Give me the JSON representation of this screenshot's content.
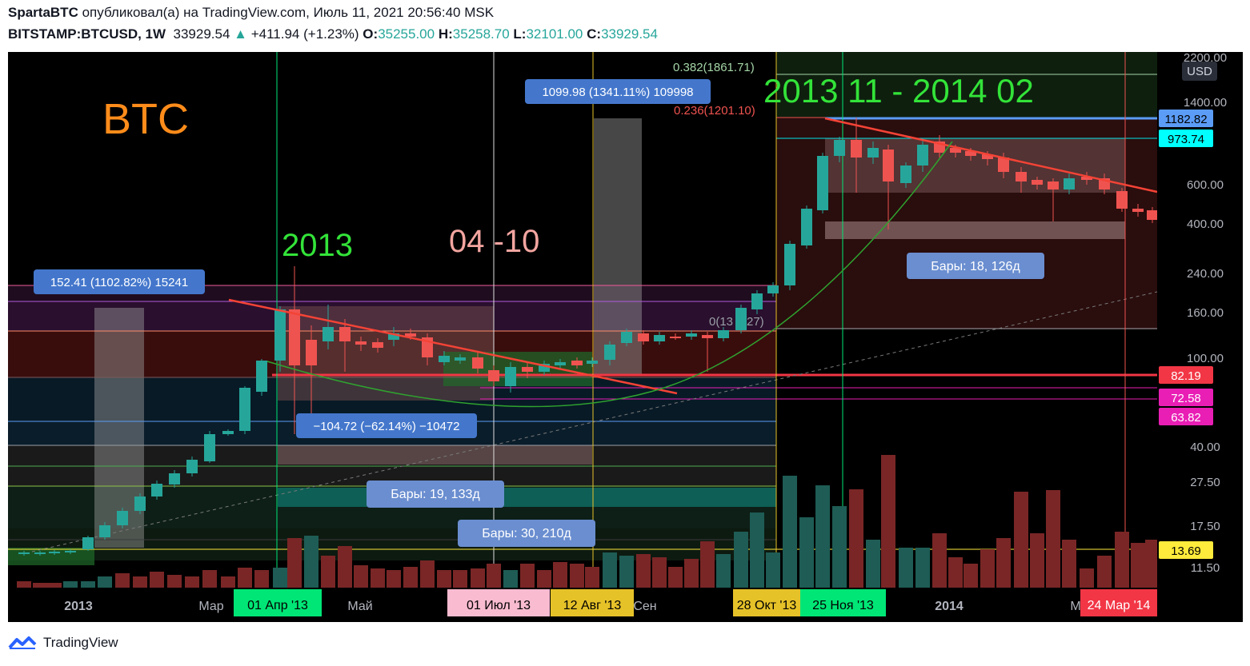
{
  "header": {
    "author": "SpartaBTC",
    "published_text": "опубликовал(а) на TradingView.com, Июль 11, 2021 20:56:40 MSK",
    "symbol": "BITSTAMP:BTCUSD, 1W",
    "price": "33929.54",
    "change": "+411.94 (+1.23%)",
    "o_label": "O:",
    "o_value": "35255.00",
    "h_label": "H:",
    "h_value": "35258.70",
    "l_label": "L:",
    "l_value": "32101.00",
    "c_label": "C:",
    "c_value": "33929.54"
  },
  "chart": {
    "currency_button": "USD",
    "y_ticks": [
      "2200.00",
      "1400.00",
      "600.00",
      "400.00",
      "240.00",
      "160.00",
      "100.00",
      "40.00",
      "27.50",
      "17.50",
      "11.50"
    ],
    "x_labels": [
      "2013",
      "Мар",
      "Май",
      "Сен",
      "2014",
      "Мар"
    ],
    "price_tags": [
      {
        "text": "1182.82",
        "bg": "#5b9cf6",
        "fg": "#000000"
      },
      {
        "text": "973.74",
        "bg": "#00ffff",
        "fg": "#000000"
      },
      {
        "text": "82.19",
        "bg": "#f23645",
        "fg": "#ffffff"
      },
      {
        "text": "72.58",
        "bg": "#e91eb5",
        "fg": "#ffffff"
      },
      {
        "text": "63.82",
        "bg": "#e91eb5",
        "fg": "#ffffff"
      },
      {
        "text": "13.69",
        "bg": "#ffeb3b",
        "fg": "#000000"
      }
    ],
    "date_tags": [
      {
        "text": "01 Апр '13",
        "bg": "#00e676"
      },
      {
        "text": "01 Июл '13",
        "bg": "#f8bbd0"
      },
      {
        "text": "12 Авг '13",
        "bg": "#e6c229"
      },
      {
        "text": "28 Окт '13",
        "bg": "#e6c229"
      },
      {
        "text": "25 Ноя '13",
        "bg": "#00e676"
      },
      {
        "text": "24 Мар '14",
        "bg": "#f23645"
      }
    ],
    "annotations": {
      "btc": "BTC",
      "year": "2013",
      "months": "04 -10",
      "period": "2013 11 - 2014 02",
      "fib_0382": "0.382(1861.71)",
      "fib_0236": "0.236(1201.10)",
      "fib_0": "0(13",
      "fib_0_tail": "27)"
    },
    "measure_labels": {
      "m1": "152.41 (1102.82%) 15241",
      "m2": "1099.98 (1341.11%) 109998",
      "m3": "−104.72 (−62.14%) −10472",
      "m4": "Бары: 18, 126д",
      "m5": "Бары: 19, 133д",
      "m6": "Бары: 30, 210д"
    },
    "colors": {
      "up": "#26a69a",
      "down": "#ef5350",
      "background": "#000000",
      "green_text": "#33e339",
      "orange_text": "#ff8c1a",
      "pink_text": "#f4a5a0"
    }
  },
  "footer": {
    "brand": "TradingView"
  }
}
